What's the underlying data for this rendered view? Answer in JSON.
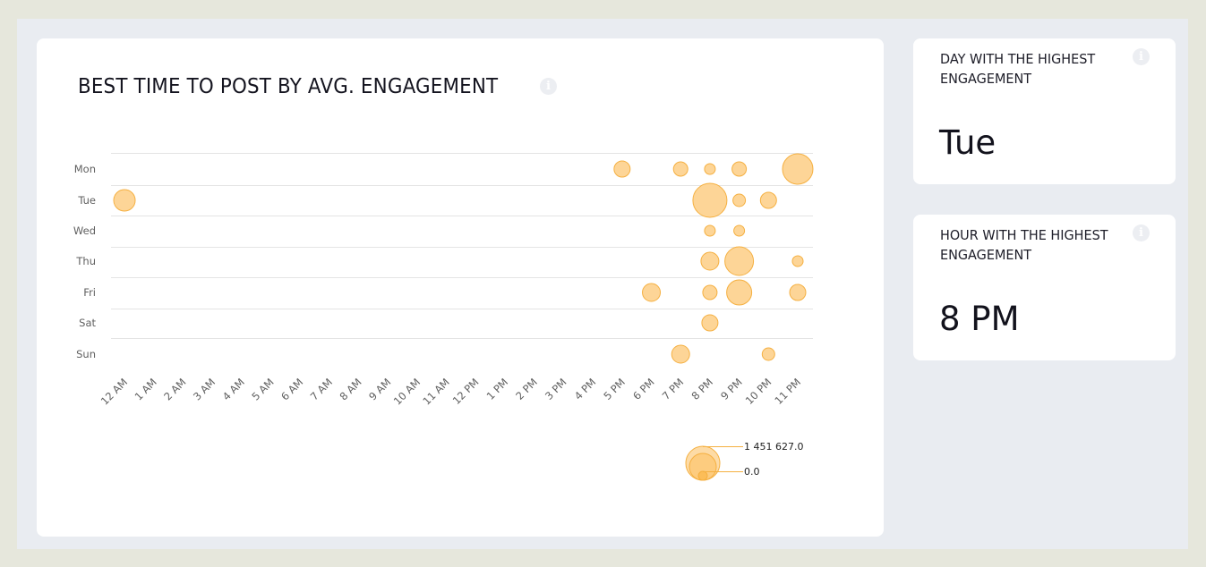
{
  "main_card": {
    "title": "BEST TIME TO POST BY AVG. ENGAGEMENT",
    "info_icon": "info-icon"
  },
  "stats": [
    {
      "label": "DAY WITH THE HIGHEST ENGAGEMENT",
      "value": "Tue",
      "info_icon": "info-icon"
    },
    {
      "label": "HOUR WITH THE HIGHEST ENGAGEMENT",
      "value": "8 PM",
      "info_icon": "info-icon"
    }
  ],
  "chart_data": {
    "type": "scatter",
    "subtype": "bubble",
    "title": "BEST TIME TO POST BY AVG. ENGAGEMENT",
    "xlabel": "",
    "ylabel": "",
    "x_categories": [
      "12 AM",
      "1 AM",
      "2 AM",
      "3 AM",
      "4 AM",
      "5 AM",
      "6 AM",
      "7 AM",
      "8 AM",
      "9 AM",
      "10 AM",
      "11 AM",
      "12 PM",
      "1 PM",
      "2 PM",
      "3 PM",
      "4 PM",
      "5 PM",
      "6 PM",
      "7 PM",
      "8 PM",
      "9 PM",
      "10 PM",
      "11 PM"
    ],
    "y_categories": [
      "Mon",
      "Tue",
      "Wed",
      "Thu",
      "Fri",
      "Sat",
      "Sun"
    ],
    "size_metric": "Avg. engagement",
    "size_range": [
      0.0,
      1451627.0
    ],
    "points": [
      {
        "day": "Mon",
        "hour": "5 PM",
        "value": 325000
      },
      {
        "day": "Mon",
        "hour": "7 PM",
        "value": 257000
      },
      {
        "day": "Mon",
        "hour": "8 PM",
        "value": 145000
      },
      {
        "day": "Mon",
        "hour": "9 PM",
        "value": 257000
      },
      {
        "day": "Mon",
        "hour": "11 PM",
        "value": 1160000
      },
      {
        "day": "Tue",
        "hour": "12 AM",
        "value": 580000
      },
      {
        "day": "Tue",
        "hour": "8 PM",
        "value": 1451627
      },
      {
        "day": "Tue",
        "hour": "9 PM",
        "value": 197000
      },
      {
        "day": "Tue",
        "hour": "10 PM",
        "value": 325000
      },
      {
        "day": "Wed",
        "hour": "8 PM",
        "value": 145000
      },
      {
        "day": "Wed",
        "hour": "9 PM",
        "value": 145000
      },
      {
        "day": "Thu",
        "hour": "8 PM",
        "value": 402000
      },
      {
        "day": "Thu",
        "hour": "9 PM",
        "value": 1029000
      },
      {
        "day": "Thu",
        "hour": "11 PM",
        "value": 145000
      },
      {
        "day": "Fri",
        "hour": "6 PM",
        "value": 402000
      },
      {
        "day": "Fri",
        "hour": "8 PM",
        "value": 257000
      },
      {
        "day": "Fri",
        "hour": "9 PM",
        "value": 788000
      },
      {
        "day": "Fri",
        "hour": "11 PM",
        "value": 325000
      },
      {
        "day": "Sat",
        "hour": "8 PM",
        "value": 325000
      },
      {
        "day": "Sun",
        "hour": "7 PM",
        "value": 402000
      },
      {
        "day": "Sun",
        "hour": "10 PM",
        "value": 197000
      }
    ],
    "legend": {
      "type": "bubble-size",
      "placement": "bottom-right",
      "labels": [
        "1 451 627.0",
        "0.0"
      ]
    },
    "grid": true,
    "colors": {
      "fill": "#fdd597",
      "stroke": "#f5b041"
    }
  }
}
